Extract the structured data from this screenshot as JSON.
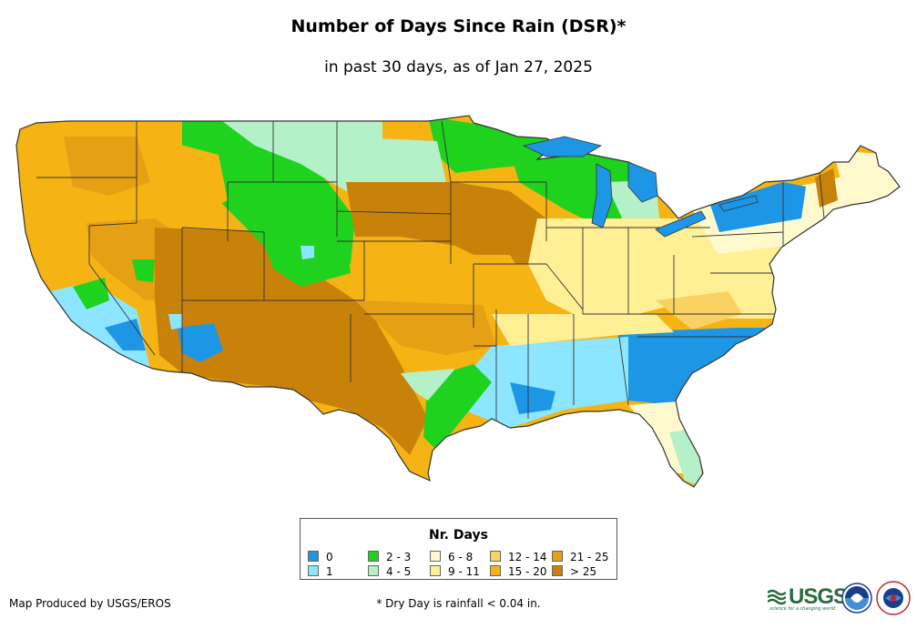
{
  "map": {
    "title": "Number of Days Since Rain (DSR)*",
    "subtitle": "in past 30 days, as of Jan 27, 2025",
    "region": "Contiguous United States"
  },
  "legend": {
    "title": "Nr. Days",
    "classes": [
      {
        "label": "0",
        "color": "#1e96e6"
      },
      {
        "label": "1",
        "color": "#8ce6ff"
      },
      {
        "label": "2 - 3",
        "color": "#1ed21e"
      },
      {
        "label": "4 - 5",
        "color": "#b4f0c8"
      },
      {
        "label": "6 - 8",
        "color": "#fffacd"
      },
      {
        "label": "9 - 11",
        "color": "#fff096"
      },
      {
        "label": "12 - 14",
        "color": "#fad264"
      },
      {
        "label": "15 - 20",
        "color": "#f5b414"
      },
      {
        "label": "21 - 25",
        "color": "#e6a014"
      },
      {
        "label": "> 25",
        "color": "#c8820a"
      }
    ]
  },
  "footer": {
    "credit": "Map Produced by USGS/EROS",
    "footnote": "* Dry Day is rainfall < 0.04 in.",
    "usgs_logo_text": "USGS",
    "usgs_tagline": "science for a changing world",
    "noaa_logo_text": "NOAA",
    "nws_logo_text": "NWS"
  },
  "colors": {
    "water": "#1e96e6",
    "state_border": "#333333"
  }
}
